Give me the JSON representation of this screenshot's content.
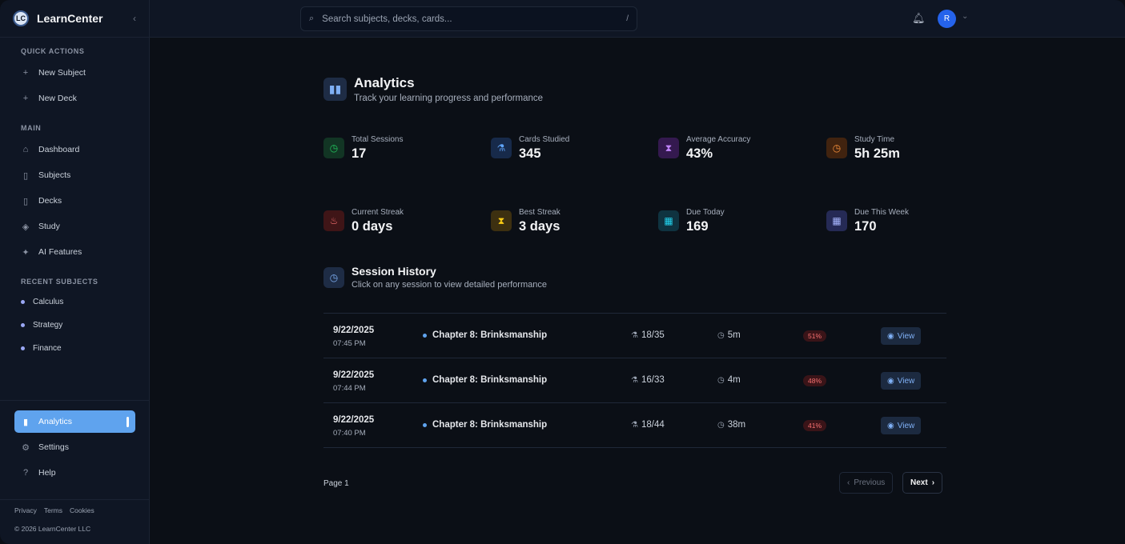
{
  "brand": {
    "logo_text": "LC",
    "name": "LearnCenter"
  },
  "sidebar": {
    "quick_actions_label": "QUICK ACTIONS",
    "quick_actions": [
      {
        "label": "New Subject",
        "icon": "plus-icon"
      },
      {
        "label": "New Deck",
        "icon": "plus-icon"
      }
    ],
    "main_label": "MAIN",
    "main_items": [
      {
        "label": "Dashboard",
        "icon": "home-icon"
      },
      {
        "label": "Subjects",
        "icon": "book-icon"
      },
      {
        "label": "Decks",
        "icon": "book-icon"
      },
      {
        "label": "Study",
        "icon": "graduation-cap-icon"
      },
      {
        "label": "AI Features",
        "icon": "sparkles-icon"
      }
    ],
    "recent_label": "RECENT SUBJECTS",
    "recent_subjects": [
      "Calculus",
      "Strategy",
      "Finance"
    ],
    "bottom_items": [
      {
        "label": "Analytics",
        "icon": "bar-chart-icon",
        "active": true
      },
      {
        "label": "Settings",
        "icon": "gear-icon"
      },
      {
        "label": "Help",
        "icon": "help-icon"
      }
    ],
    "footer_links": [
      "Privacy",
      "Terms",
      "Cookies"
    ],
    "copyright": "© 2026 LearnCenter LLC"
  },
  "topbar": {
    "search_placeholder": "Search subjects, decks, cards...",
    "search_shortcut": "/",
    "avatar_initial": "R"
  },
  "header": {
    "title": "Analytics",
    "subtitle": "Track your learning progress and performance"
  },
  "stats": [
    {
      "label": "Total Sessions",
      "value": "17",
      "icon": "clock-icon",
      "color": "#22c55e",
      "bg": "#123524"
    },
    {
      "label": "Cards Studied",
      "value": "345",
      "icon": "flask-icon",
      "color": "#60a5fa",
      "bg": "#172a4a"
    },
    {
      "label": "Average Accuracy",
      "value": "43%",
      "icon": "hourglass-icon",
      "color": "#c084fc",
      "bg": "#34194f"
    },
    {
      "label": "Study Time",
      "value": "5h 25m",
      "icon": "clock-icon",
      "color": "#fb923c",
      "bg": "#41230f"
    },
    {
      "label": "Current Streak",
      "value": "0 days",
      "icon": "flame-icon",
      "color": "#f87171",
      "bg": "#3f1517"
    },
    {
      "label": "Best Streak",
      "value": "3 days",
      "icon": "hourglass-icon",
      "color": "#facc15",
      "bg": "#3d3010"
    },
    {
      "label": "Due Today",
      "value": "169",
      "icon": "calendar-icon",
      "color": "#22d3ee",
      "bg": "#0f3340"
    },
    {
      "label": "Due This Week",
      "value": "170",
      "icon": "calendar-icon",
      "color": "#a5b4fc",
      "bg": "#252a55"
    }
  ],
  "history": {
    "title": "Session History",
    "subtitle": "Click on any session to view detailed performance",
    "rows": [
      {
        "date": "9/22/2025",
        "time": "07:45 PM",
        "deck": "Chapter 8: Brinksmanship",
        "cards": "18/35",
        "duration": "5m",
        "accuracy": "51%",
        "view": "View"
      },
      {
        "date": "9/22/2025",
        "time": "07:44 PM",
        "deck": "Chapter 8: Brinksmanship",
        "cards": "16/33",
        "duration": "4m",
        "accuracy": "48%",
        "view": "View"
      },
      {
        "date": "9/22/2025",
        "time": "07:40 PM",
        "deck": "Chapter 8: Brinksmanship",
        "cards": "18/44",
        "duration": "38m",
        "accuracy": "41%",
        "view": "View"
      }
    ]
  },
  "pagination": {
    "page_label": "Page 1",
    "previous": "Previous",
    "next": "Next"
  }
}
